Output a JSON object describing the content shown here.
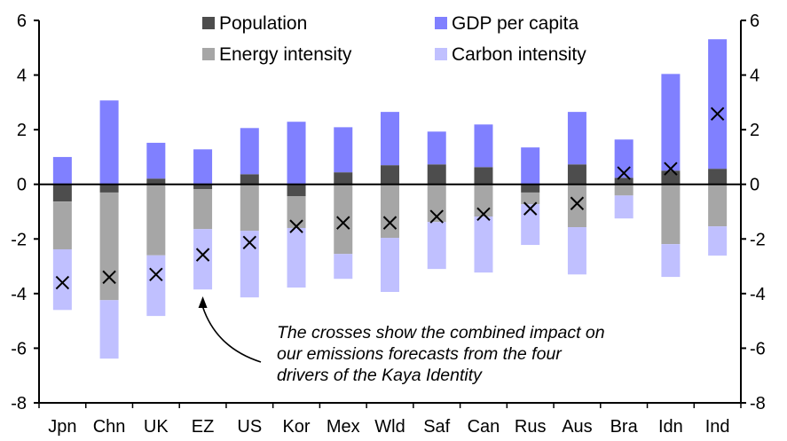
{
  "chart_data": {
    "type": "bar",
    "stacked": true,
    "title": "",
    "xlabel": "",
    "ylabel": "",
    "ylim": [
      -8,
      6
    ],
    "y_ticks": [
      6,
      4,
      2,
      0,
      -2,
      -4,
      -6,
      -8
    ],
    "y_tick_labels": [
      "6",
      "4",
      "2",
      "0",
      "-2",
      "-4",
      "-6",
      "-8"
    ],
    "secondary_y": true,
    "grid": false,
    "legend_position": "top-center",
    "categories": [
      "Jpn",
      "Chn",
      "UK",
      "EZ",
      "US",
      "Kor",
      "Mex",
      "Wld",
      "Saf",
      "Can",
      "Rus",
      "Aus",
      "Bra",
      "Idn",
      "Ind"
    ],
    "series": [
      {
        "name": "Population",
        "color": "#4d4d4d",
        "values": [
          -0.63,
          -0.3,
          0.21,
          -0.18,
          0.37,
          -0.44,
          0.44,
          0.7,
          0.73,
          0.63,
          -0.3,
          0.73,
          0.24,
          0.5,
          0.57
        ]
      },
      {
        "name": "GDP per capita",
        "color": "#8080ff",
        "values": [
          1.0,
          3.07,
          1.31,
          1.28,
          1.69,
          2.29,
          1.65,
          1.95,
          1.2,
          1.56,
          1.35,
          1.92,
          1.4,
          3.54,
          4.74
        ]
      },
      {
        "name": "Energy intensity",
        "color": "#a6a6a6",
        "values": [
          -1.75,
          -3.94,
          -2.6,
          -1.46,
          -1.7,
          -1.16,
          -2.55,
          -1.96,
          -1.38,
          -1.18,
          -0.43,
          -1.57,
          -0.41,
          -2.19,
          -1.54
        ]
      },
      {
        "name": "Carbon intensity",
        "color": "#c0c0ff",
        "values": [
          -2.22,
          -2.14,
          -2.22,
          -2.21,
          -2.44,
          -2.18,
          -0.91,
          -1.98,
          -1.72,
          -2.05,
          -1.49,
          -1.73,
          -0.84,
          -1.2,
          -1.07
        ]
      }
    ],
    "combined_impact": {
      "name": "Combined impact (crosses)",
      "marker": "x",
      "values": [
        -3.6,
        -3.4,
        -3.3,
        -2.58,
        -2.13,
        -1.54,
        -1.41,
        -1.41,
        -1.18,
        -1.09,
        -0.89,
        -0.7,
        0.41,
        0.57,
        2.58
      ]
    },
    "annotation": {
      "lines": [
        "The crosses show the combined impact on",
        "our emissions forecasts from the four",
        "drivers of the Kaya Identity"
      ],
      "points_to": "EZ"
    }
  }
}
